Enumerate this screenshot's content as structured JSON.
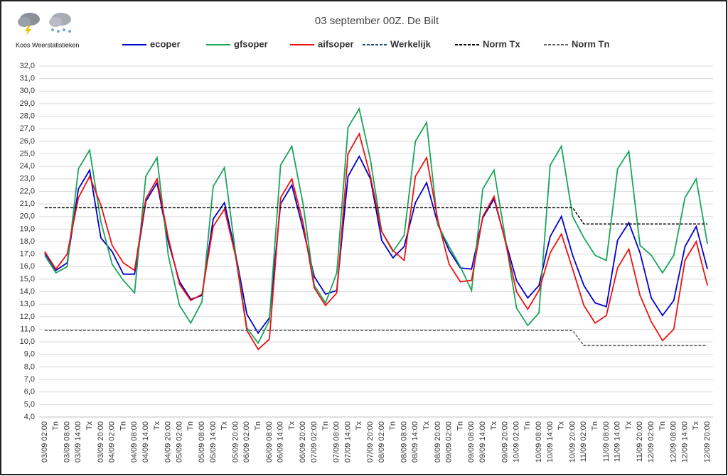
{
  "brand": "Koos Weerstatistieken",
  "chart_data": {
    "type": "line",
    "title": "03 september 00Z. De Bilt",
    "categories": [
      "03/09 02:00",
      "Tn",
      "03/09 08:00",
      "03/09 14:00",
      "Tx",
      "03/09 20:00",
      "04/09 02:00",
      "Tn",
      "04/09 08:00",
      "04/09 14:00",
      "Tx",
      "04/09 20:00",
      "05/09 02:00",
      "Tn",
      "05/09 08:00",
      "05/09 14:00",
      "Tx",
      "05/09 20:00",
      "06/09 02:00",
      "Tn",
      "06/09 08:00",
      "06/09 14:00",
      "Tx",
      "06/09 20:00",
      "07/09 02:00",
      "Tn",
      "07/09 08:00",
      "07/09 14:00",
      "Tx",
      "07/09 20:00",
      "08/09 02:00",
      "Tn",
      "08/09 08:00",
      "08/09 14:00",
      "Tx",
      "08/09 20:00",
      "09/09 02:00",
      "Tn",
      "09/09 08:00",
      "09/09 14:00",
      "Tx",
      "09/09 20:00",
      "10/09 02:00",
      "Tn",
      "10/09 08:00",
      "10/09 14:00",
      "Tx",
      "10/09 20:00",
      "11/09 02:00",
      "Tn",
      "11/09 08:00",
      "11/09 14:00",
      "Tx",
      "11/09 20:00",
      "12/09 02:00",
      "Tn",
      "12/09 08:00",
      "12/09 14:00",
      "Tx",
      "12/09 20:00"
    ],
    "series": [
      {
        "name": "ecoper",
        "color": "#0000cc",
        "dash": "solid",
        "values": [
          17.1,
          15.7,
          16.3,
          22.2,
          23.7,
          18.3,
          17.2,
          15.4,
          15.4,
          21.2,
          22.7,
          18.0,
          14.8,
          13.4,
          13.7,
          19.8,
          21.1,
          17.0,
          12.2,
          10.7,
          11.9,
          21.0,
          22.5,
          19.0,
          15.2,
          13.8,
          14.1,
          23.2,
          24.8,
          23.0,
          18.1,
          16.7,
          17.6,
          21.1,
          22.7,
          19.4,
          17.3,
          15.9,
          15.8,
          19.9,
          21.4,
          18.1,
          14.9,
          13.5,
          14.5,
          18.4,
          20.0,
          16.9,
          14.5,
          13.1,
          12.8,
          18.1,
          19.5,
          17.1,
          13.5,
          12.1,
          13.3,
          17.6,
          19.2,
          15.8
        ]
      },
      {
        "name": "gfsoper",
        "color": "#1aa55a",
        "dash": "solid",
        "values": [
          16.9,
          15.5,
          16.0,
          23.8,
          25.3,
          19.6,
          16.2,
          14.9,
          13.9,
          23.2,
          24.7,
          16.9,
          12.9,
          11.5,
          13.2,
          22.4,
          23.9,
          17.0,
          11.1,
          9.9,
          11.7,
          24.1,
          25.6,
          21.0,
          14.5,
          13.1,
          15.5,
          27.1,
          28.6,
          24.5,
          18.8,
          17.2,
          18.5,
          26.0,
          27.5,
          19.3,
          17.6,
          16.0,
          14.1,
          22.2,
          23.7,
          18.3,
          12.7,
          11.3,
          12.3,
          24.1,
          25.6,
          20.0,
          18.3,
          16.9,
          16.5,
          23.8,
          25.2,
          17.7,
          16.9,
          15.5,
          16.9,
          21.5,
          23.0,
          17.8
        ]
      },
      {
        "name": "aifsoper",
        "color": "#ee1111",
        "dash": "solid",
        "values": [
          17.2,
          15.8,
          17.0,
          21.5,
          23.2,
          20.9,
          17.7,
          16.3,
          15.7,
          21.4,
          23.0,
          18.3,
          14.6,
          13.3,
          13.8,
          19.2,
          20.6,
          16.8,
          10.9,
          9.4,
          10.2,
          21.5,
          23.0,
          19.5,
          14.3,
          12.9,
          13.9,
          25.0,
          26.6,
          23.2,
          18.8,
          17.3,
          16.5,
          23.2,
          24.7,
          19.7,
          16.2,
          14.8,
          14.9,
          20.0,
          21.6,
          18.0,
          14.0,
          12.6,
          14.1,
          17.1,
          18.6,
          15.8,
          12.9,
          11.5,
          12.1,
          15.9,
          17.4,
          13.7,
          11.6,
          10.1,
          11.0,
          16.5,
          18.0,
          14.5
        ]
      },
      {
        "name": "Werkelijk",
        "color": "#1f4e79",
        "dash": "dashed",
        "values": [
          null,
          null,
          null,
          null,
          null,
          null,
          null,
          null,
          null,
          null,
          null,
          null,
          null,
          null,
          null,
          null,
          null,
          null,
          null,
          null,
          null,
          null,
          null,
          null,
          null,
          null,
          null,
          null,
          null,
          null,
          null,
          null,
          null,
          null,
          null,
          null,
          null,
          null,
          null,
          null,
          null,
          null,
          null,
          null,
          null,
          null,
          null,
          null,
          null,
          null,
          null,
          null,
          null,
          null,
          null,
          null,
          null,
          null,
          null,
          null
        ]
      },
      {
        "name": "Norm Tx",
        "color": "#000000",
        "dash": "dashed",
        "values": [
          20.7,
          20.7,
          20.7,
          20.7,
          20.7,
          20.7,
          20.7,
          20.7,
          20.7,
          20.7,
          20.7,
          20.7,
          20.7,
          20.7,
          20.7,
          20.7,
          20.7,
          20.7,
          20.7,
          20.7,
          20.7,
          20.7,
          20.7,
          20.7,
          20.7,
          20.7,
          20.7,
          20.7,
          20.7,
          20.7,
          20.7,
          20.7,
          20.7,
          20.7,
          20.7,
          20.7,
          20.7,
          20.7,
          20.7,
          20.7,
          20.7,
          20.7,
          20.7,
          20.7,
          20.7,
          20.7,
          20.7,
          20.7,
          19.4,
          19.4,
          19.4,
          19.4,
          19.4,
          19.4,
          19.4,
          19.4,
          19.4,
          19.4,
          19.4,
          19.4
        ]
      },
      {
        "name": "Norm Tn",
        "color": "#666666",
        "dash": "dashed",
        "values": [
          10.9,
          10.9,
          10.9,
          10.9,
          10.9,
          10.9,
          10.9,
          10.9,
          10.9,
          10.9,
          10.9,
          10.9,
          10.9,
          10.9,
          10.9,
          10.9,
          10.9,
          10.9,
          10.9,
          10.9,
          10.9,
          10.9,
          10.9,
          10.9,
          10.9,
          10.9,
          10.9,
          10.9,
          10.9,
          10.9,
          10.9,
          10.9,
          10.9,
          10.9,
          10.9,
          10.9,
          10.9,
          10.9,
          10.9,
          10.9,
          10.9,
          10.9,
          10.9,
          10.9,
          10.9,
          10.9,
          10.9,
          10.9,
          9.7,
          9.7,
          9.7,
          9.7,
          9.7,
          9.7,
          9.7,
          9.7,
          9.7,
          9.7,
          9.7,
          9.7
        ]
      }
    ],
    "ylim": [
      4,
      32
    ],
    "yticks": [
      {
        "value": 4,
        "label": "4,0"
      },
      {
        "value": 5,
        "label": "5,0"
      },
      {
        "value": 6,
        "label": "6,0"
      },
      {
        "value": 7,
        "label": "7,0"
      },
      {
        "value": 8,
        "label": "8,0"
      },
      {
        "value": 9,
        "label": "9,0"
      },
      {
        "value": 10,
        "label": "10,0"
      },
      {
        "value": 11,
        "label": "11,0"
      },
      {
        "value": 12,
        "label": "12,0"
      },
      {
        "value": 13,
        "label": "13,0"
      },
      {
        "value": 14,
        "label": "14,0"
      },
      {
        "value": 15,
        "label": "15,0"
      },
      {
        "value": 16,
        "label": "16,0"
      },
      {
        "value": 17,
        "label": "17,0"
      },
      {
        "value": 18,
        "label": "18,0"
      },
      {
        "value": 19,
        "label": "19,0"
      },
      {
        "value": 20,
        "label": "20,0"
      },
      {
        "value": 21,
        "label": "21,0"
      },
      {
        "value": 22,
        "label": "22,0"
      },
      {
        "value": 23,
        "label": "23,0"
      },
      {
        "value": 24,
        "label": "24,0"
      },
      {
        "value": 25,
        "label": "25,0"
      },
      {
        "value": 26,
        "label": "26,0"
      },
      {
        "value": 27,
        "label": "27,0"
      },
      {
        "value": 28,
        "label": "28,0"
      },
      {
        "value": 29,
        "label": "29,0"
      },
      {
        "value": 30,
        "label": "30,0"
      },
      {
        "value": 31,
        "label": "31,0"
      },
      {
        "value": 32,
        "label": "32,0"
      }
    ],
    "grid": true,
    "legend": "top"
  }
}
